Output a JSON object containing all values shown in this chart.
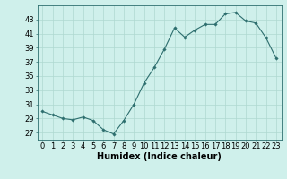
{
  "x": [
    0,
    1,
    2,
    3,
    4,
    5,
    6,
    7,
    8,
    9,
    10,
    11,
    12,
    13,
    14,
    15,
    16,
    17,
    18,
    19,
    20,
    21,
    22,
    23
  ],
  "y": [
    30.0,
    29.5,
    29.0,
    28.8,
    29.2,
    28.7,
    27.4,
    26.8,
    28.7,
    31.0,
    34.0,
    36.2,
    38.8,
    41.8,
    40.5,
    41.5,
    42.3,
    42.3,
    43.8,
    44.0,
    42.8,
    42.5,
    40.4,
    37.5
  ],
  "line_color": "#2d6e6e",
  "marker": "D",
  "marker_size": 1.8,
  "bg_color": "#cff0eb",
  "grid_color": "#aed8d0",
  "xlabel": "Humidex (Indice chaleur)",
  "ylim": [
    26,
    45
  ],
  "xlim": [
    -0.5,
    23.5
  ],
  "yticks": [
    27,
    29,
    31,
    33,
    35,
    37,
    39,
    41,
    43
  ],
  "xtick_labels": [
    "0",
    "1",
    "2",
    "3",
    "4",
    "5",
    "6",
    "7",
    "8",
    "9",
    "10",
    "11",
    "12",
    "13",
    "14",
    "15",
    "16",
    "17",
    "18",
    "19",
    "20",
    "21",
    "22",
    "23"
  ],
  "xlabel_fontsize": 7.0,
  "tick_fontsize": 6.0
}
